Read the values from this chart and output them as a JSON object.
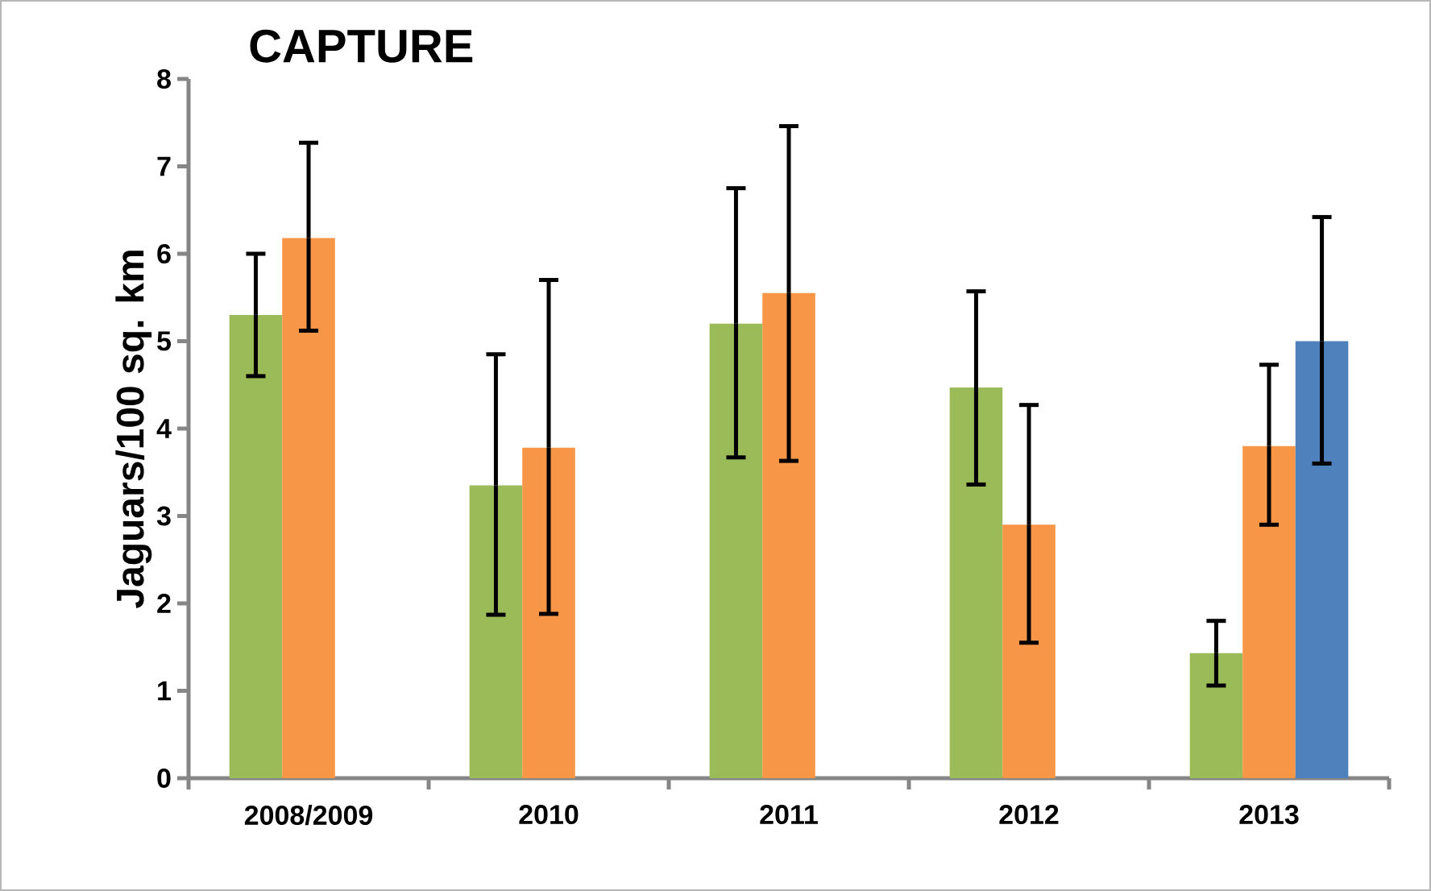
{
  "chart_data": {
    "type": "bar",
    "title": "CAPTURE",
    "ylabel": "Jaguars/100 sq. km",
    "categories": [
      "2008/2009",
      "2010",
      "2011",
      "2012",
      "2013"
    ],
    "series": [
      {
        "color": "#9bbb59",
        "values": [
          5.3,
          3.35,
          5.2,
          4.47,
          1.43
        ],
        "errors": [
          [
            4.6,
            6.0
          ],
          [
            1.87,
            4.85
          ],
          [
            3.67,
            6.75
          ],
          [
            3.36,
            5.57
          ],
          [
            1.06,
            1.8
          ]
        ]
      },
      {
        "color": "#f79646",
        "values": [
          6.18,
          3.78,
          5.55,
          2.9,
          3.8
        ],
        "errors": [
          [
            5.12,
            7.27
          ],
          [
            1.88,
            5.7
          ],
          [
            3.63,
            7.46
          ],
          [
            1.55,
            4.27
          ],
          [
            2.9,
            4.73
          ]
        ]
      },
      {
        "color": "#4f81bd",
        "values": [
          null,
          null,
          null,
          null,
          5.0
        ],
        "errors": [
          null,
          null,
          null,
          null,
          [
            3.6,
            6.42
          ]
        ]
      }
    ],
    "ylim": [
      0,
      8
    ],
    "yticks": [
      0,
      1,
      2,
      3,
      4,
      5,
      6,
      7,
      8
    ],
    "grid": false,
    "legend": false
  }
}
